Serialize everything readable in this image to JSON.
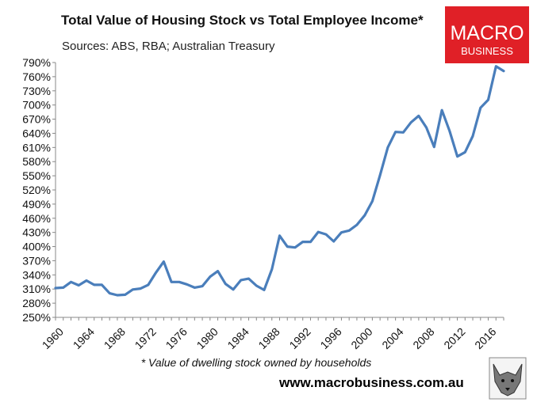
{
  "header": {
    "title": "Total Value of Housing Stock vs Total Employee Income*",
    "subtitle": "Sources: ABS, RBA; Australian Treasury"
  },
  "logo": {
    "line1": "MACRO",
    "line2": "BUSINESS",
    "color": "#e02027"
  },
  "footer": {
    "footnote": "* Value of dwelling stock owned by households",
    "website": "www.macrobusiness.com.au"
  },
  "chart_data": {
    "type": "line",
    "title": "Total Value of Housing Stock vs Total Employee Income*",
    "xlabel": "",
    "ylabel": "",
    "ylim": [
      250,
      790
    ],
    "xlim": [
      1960,
      2018
    ],
    "grid": false,
    "line_color": "#4a7ebb",
    "y_ticks": [
      "250%",
      "280%",
      "310%",
      "340%",
      "370%",
      "400%",
      "430%",
      "460%",
      "490%",
      "520%",
      "550%",
      "580%",
      "610%",
      "640%",
      "670%",
      "700%",
      "730%",
      "760%",
      "790%"
    ],
    "x_ticks": [
      "1960",
      "1964",
      "1968",
      "1972",
      "1976",
      "1980",
      "1984",
      "1988",
      "1992",
      "1996",
      "2000",
      "2004",
      "2008",
      "2012",
      "2016"
    ],
    "series": [
      {
        "x": [
          1960,
          1961,
          1962,
          1963,
          1964,
          1965,
          1966,
          1967,
          1968,
          1969,
          1970,
          1971,
          1972,
          1973,
          1974,
          1975,
          1976,
          1977,
          1978,
          1979,
          1980,
          1981,
          1982,
          1983,
          1984,
          1985,
          1986,
          1987,
          1988,
          1989,
          1990,
          1991,
          1992,
          1993,
          1994,
          1995,
          1996,
          1997,
          1998,
          1999,
          2000,
          2001,
          2002,
          2003,
          2004,
          2005,
          2006,
          2007,
          2008,
          2009,
          2010,
          2011,
          2012,
          2013,
          2014,
          2015,
          2016,
          2017,
          2018
        ],
        "values": [
          312,
          313,
          325,
          318,
          328,
          319,
          319,
          301,
          297,
          298,
          309,
          311,
          319,
          345,
          368,
          325,
          325,
          320,
          313,
          316,
          336,
          348,
          321,
          309,
          329,
          332,
          317,
          308,
          352,
          423,
          400,
          398,
          410,
          410,
          431,
          426,
          411,
          430,
          434,
          446,
          466,
          496,
          551,
          610,
          643,
          642,
          663,
          677,
          652,
          611,
          689,
          645,
          591,
          600,
          634,
          694,
          711,
          782,
          772
        ]
      }
    ]
  }
}
